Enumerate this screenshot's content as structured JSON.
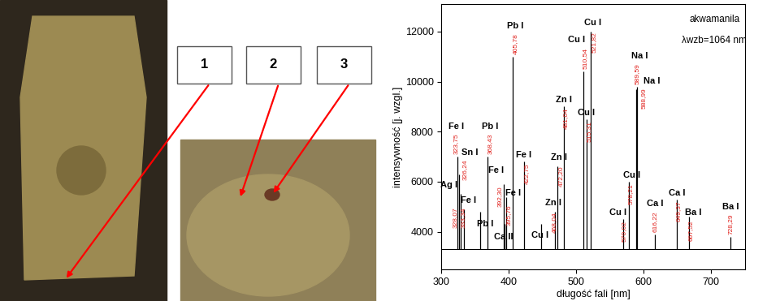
{
  "chart_data": {
    "type": "spectrum",
    "xlabel": "długość fali [nm]",
    "ylabel": "intensywność [j. wzgl.]",
    "annotations": [
      "akwamanila",
      "λwzb=1064 nm"
    ],
    "xlim": [
      300,
      750
    ],
    "xticks": [
      300,
      400,
      500,
      600,
      700
    ],
    "ylim": [
      2500,
      13100
    ],
    "yticks": [
      4000,
      6000,
      8000,
      10000,
      12000
    ],
    "baseline": 3300,
    "color": "#000000",
    "peaks": [
      {
        "x": 323.75,
        "x_label": "323,75",
        "value": 7000,
        "element": "Fe I"
      },
      {
        "x": 326.24,
        "x_label": "326,24",
        "value": 6300,
        "element": "Sn I"
      },
      {
        "x": 328.07,
        "x_label": "328,07",
        "value": 5500,
        "element": "Ag I"
      },
      {
        "x": 333.34,
        "x_label": "333,34",
        "value": 4900,
        "element": "Fe I"
      },
      {
        "x": 357.27,
        "x_label": null,
        "value": 4800,
        "element": "Pb I"
      },
      {
        "x": 368.43,
        "x_label": "368,43",
        "value": 7000,
        "element": "Pb I"
      },
      {
        "x": 393.37,
        "x_label": null,
        "value": 4300,
        "element": "Ca II"
      },
      {
        "x": 392.3,
        "x_label": "392,30",
        "value": 5900,
        "element": "Fe I"
      },
      {
        "x": 395.76,
        "x_label": "395,76",
        "value": 5400,
        "element": "Fe I"
      },
      {
        "x": 405.78,
        "x_label": "405,78",
        "value": 11000,
        "element": "Pb I"
      },
      {
        "x": 422.75,
        "x_label": "422,75",
        "value": 6800,
        "element": "Fe I"
      },
      {
        "x": 448.0,
        "x_label": null,
        "value": 4300,
        "element": "Cu I"
      },
      {
        "x": 468.04,
        "x_label": "468,04",
        "value": 4800,
        "element": "Zn I"
      },
      {
        "x": 472.2,
        "x_label": "472,20",
        "value": 6600,
        "element": "Zn I"
      },
      {
        "x": 481.04,
        "x_label": "481,04",
        "value": 9000,
        "element": "Zn I"
      },
      {
        "x": 510.54,
        "x_label": "510,54",
        "value": 10400,
        "element": "Cu I"
      },
      {
        "x": 515.31,
        "x_label": "515,31",
        "value": 8500,
        "element": "Cu I"
      },
      {
        "x": 521.82,
        "x_label": "521,82",
        "value": 12000,
        "element": "Cu I"
      },
      {
        "x": 570.02,
        "x_label": "570,02",
        "value": 4500,
        "element": "Cu I"
      },
      {
        "x": 578.21,
        "x_label": "578,21",
        "value": 6000,
        "element": "Cu I"
      },
      {
        "x": 589.59,
        "x_label": "589,59",
        "value": 9800,
        "element": "Na I"
      },
      {
        "x": 588.99,
        "x_label": "588,99",
        "value": 9700,
        "element": "Na I"
      },
      {
        "x": 616.22,
        "x_label": "616,22",
        "value": 3900,
        "element": "Ca I"
      },
      {
        "x": 649.37,
        "x_label": "649,37",
        "value": 5300,
        "element": "Ca I"
      },
      {
        "x": 667.52,
        "x_label": "667,52",
        "value": 4600,
        "element": "Ba I"
      },
      {
        "x": 728.29,
        "x_label": "728,29",
        "value": 3800,
        "element": "Ba I"
      }
    ]
  },
  "figure_labels": [
    "1",
    "2",
    "3"
  ]
}
